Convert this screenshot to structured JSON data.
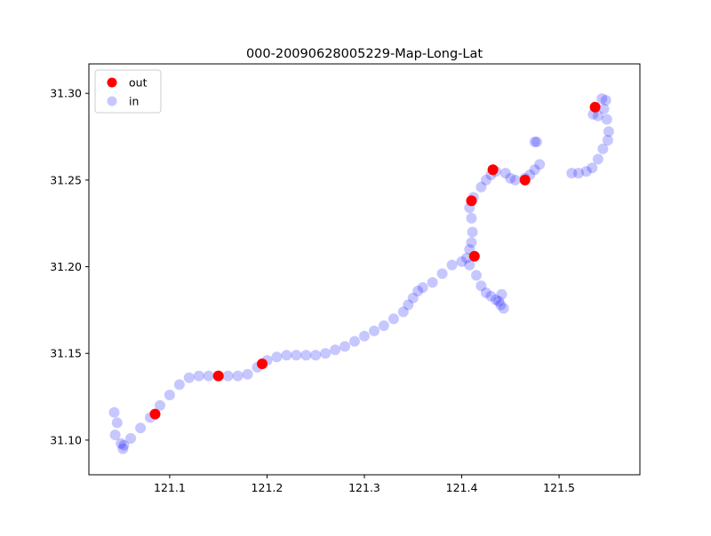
{
  "chart_data": {
    "type": "scatter",
    "title": "000-20090628005229-Map-Long-Lat",
    "xlabel": "",
    "ylabel": "",
    "xlim": [
      121.017,
      121.583
    ],
    "ylim": [
      31.08,
      31.317
    ],
    "x_ticks": [
      121.1,
      121.2,
      121.3,
      121.4,
      121.5
    ],
    "y_ticks": [
      31.1,
      31.15,
      31.2,
      31.25,
      31.3
    ],
    "x_tick_labels": [
      "121.1",
      "121.2",
      "121.3",
      "121.4",
      "121.5"
    ],
    "y_tick_labels": [
      "31.10",
      "31.15",
      "31.20",
      "31.25",
      "31.30"
    ],
    "grid": false,
    "legend_position": "upper-left",
    "legend": [
      {
        "name": "out",
        "color": "#ff0000"
      },
      {
        "name": "in",
        "color": "#0000ff"
      }
    ],
    "series": [
      {
        "name": "in",
        "color": "#0000ff",
        "alpha": 0.22,
        "points": [
          [
            121.043,
            31.116
          ],
          [
            121.046,
            31.11
          ],
          [
            121.044,
            31.103
          ],
          [
            121.05,
            31.098
          ],
          [
            121.053,
            31.097
          ],
          [
            121.052,
            31.095
          ],
          [
            121.06,
            31.101
          ],
          [
            121.07,
            31.107
          ],
          [
            121.08,
            31.113
          ],
          [
            121.09,
            31.12
          ],
          [
            121.1,
            31.126
          ],
          [
            121.11,
            31.132
          ],
          [
            121.12,
            31.136
          ],
          [
            121.13,
            31.137
          ],
          [
            121.14,
            31.137
          ],
          [
            121.15,
            31.137
          ],
          [
            121.16,
            31.137
          ],
          [
            121.17,
            31.137
          ],
          [
            121.18,
            31.138
          ],
          [
            121.19,
            31.142
          ],
          [
            121.2,
            31.146
          ],
          [
            121.21,
            31.148
          ],
          [
            121.22,
            31.149
          ],
          [
            121.23,
            31.149
          ],
          [
            121.24,
            31.149
          ],
          [
            121.25,
            31.149
          ],
          [
            121.26,
            31.15
          ],
          [
            121.27,
            31.152
          ],
          [
            121.28,
            31.154
          ],
          [
            121.29,
            31.157
          ],
          [
            121.3,
            31.16
          ],
          [
            121.31,
            31.163
          ],
          [
            121.32,
            31.166
          ],
          [
            121.33,
            31.17
          ],
          [
            121.34,
            31.174
          ],
          [
            121.345,
            31.178
          ],
          [
            121.35,
            31.182
          ],
          [
            121.355,
            31.186
          ],
          [
            121.36,
            31.188
          ],
          [
            121.37,
            31.191
          ],
          [
            121.38,
            31.196
          ],
          [
            121.39,
            31.201
          ],
          [
            121.4,
            31.203
          ],
          [
            121.405,
            31.205
          ],
          [
            121.408,
            31.21
          ],
          [
            121.41,
            31.214
          ],
          [
            121.411,
            31.22
          ],
          [
            121.41,
            31.228
          ],
          [
            121.408,
            31.234
          ],
          [
            121.412,
            31.24
          ],
          [
            121.42,
            31.246
          ],
          [
            121.425,
            31.25
          ],
          [
            121.43,
            31.253
          ],
          [
            121.435,
            31.255
          ],
          [
            121.445,
            31.254
          ],
          [
            121.45,
            31.251
          ],
          [
            121.455,
            31.25
          ],
          [
            121.465,
            31.251
          ],
          [
            121.47,
            31.253
          ],
          [
            121.475,
            31.256
          ],
          [
            121.48,
            31.259
          ],
          [
            121.408,
            31.201
          ],
          [
            121.415,
            31.195
          ],
          [
            121.42,
            31.189
          ],
          [
            121.425,
            31.185
          ],
          [
            121.43,
            31.183
          ],
          [
            121.435,
            31.181
          ],
          [
            121.44,
            31.178
          ],
          [
            121.443,
            31.176
          ],
          [
            121.441,
            31.184
          ],
          [
            121.438,
            31.18
          ],
          [
            121.475,
            31.272
          ],
          [
            121.477,
            31.272
          ],
          [
            121.513,
            31.254
          ],
          [
            121.52,
            31.254
          ],
          [
            121.528,
            31.255
          ],
          [
            121.534,
            31.257
          ],
          [
            121.54,
            31.262
          ],
          [
            121.545,
            31.268
          ],
          [
            121.55,
            31.273
          ],
          [
            121.551,
            31.278
          ],
          [
            121.549,
            31.285
          ],
          [
            121.546,
            31.291
          ],
          [
            121.544,
            31.297
          ],
          [
            121.548,
            31.296
          ],
          [
            121.535,
            31.288
          ],
          [
            121.54,
            31.287
          ]
        ]
      },
      {
        "name": "out",
        "color": "#ff0000",
        "alpha": 1,
        "points": [
          [
            121.085,
            31.115
          ],
          [
            121.15,
            31.137
          ],
          [
            121.195,
            31.144
          ],
          [
            121.41,
            31.238
          ],
          [
            121.413,
            31.206
          ],
          [
            121.432,
            31.256
          ],
          [
            121.465,
            31.25
          ],
          [
            121.537,
            31.292
          ]
        ]
      }
    ]
  }
}
